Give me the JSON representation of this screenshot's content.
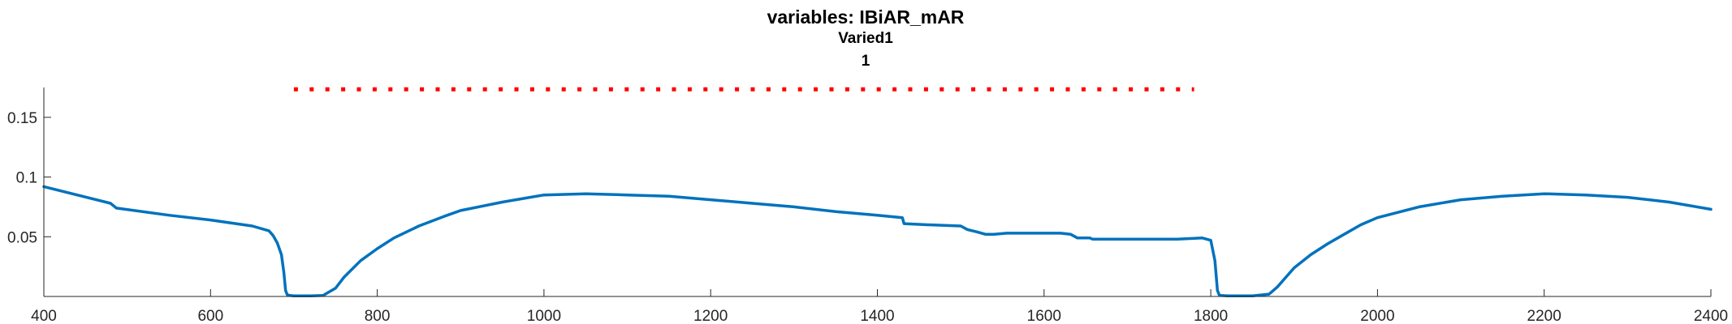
{
  "chart_data": {
    "type": "line",
    "title": "variables: IBiAR_mAR",
    "subtitle": [
      "Varied1",
      "1"
    ],
    "xlabel": "",
    "ylabel": "",
    "xlim": [
      400,
      2400
    ],
    "ylim": [
      0,
      0.175
    ],
    "xticks": [
      400,
      600,
      800,
      1000,
      1200,
      1400,
      1600,
      1800,
      2000,
      2200,
      2400
    ],
    "xtick_labels": [
      "400",
      "600",
      "800",
      "1000",
      "1200",
      "1400",
      "1600",
      "1800",
      "2000",
      "2200",
      "2400"
    ],
    "yticks": [
      0.05,
      0.1,
      0.15
    ],
    "ytick_labels": [
      "0.05",
      "0.1",
      "0.15"
    ],
    "grid": false,
    "series": [
      {
        "color": "#0072bd",
        "style": "solid",
        "x": [
          400,
          480,
          487,
          550,
          600,
          650,
          670,
          675,
          680,
          685,
          688,
          690,
          692,
          695,
          700,
          720,
          735,
          750,
          760,
          780,
          800,
          820,
          850,
          880,
          900,
          950,
          1000,
          1050,
          1100,
          1150,
          1200,
          1250,
          1300,
          1350,
          1400,
          1430,
          1432,
          1460,
          1500,
          1508,
          1520,
          1530,
          1540,
          1555,
          1560,
          1600,
          1620,
          1632,
          1640,
          1655,
          1658,
          1680,
          1720,
          1760,
          1790,
          1800,
          1805,
          1808,
          1810,
          1812,
          1820,
          1850,
          1870,
          1880,
          1890,
          1900,
          1920,
          1940,
          1960,
          1980,
          2000,
          2050,
          2100,
          2150,
          2200,
          2250,
          2300,
          2350,
          2400
        ],
        "y": [
          0.092,
          0.078,
          0.074,
          0.068,
          0.064,
          0.059,
          0.055,
          0.051,
          0.045,
          0.035,
          0.02,
          0.005,
          0.0015,
          0.0008,
          0.0005,
          0.0005,
          0.0008,
          0.007,
          0.016,
          0.03,
          0.04,
          0.049,
          0.059,
          0.067,
          0.072,
          0.079,
          0.085,
          0.086,
          0.085,
          0.084,
          0.081,
          0.078,
          0.075,
          0.071,
          0.068,
          0.066,
          0.061,
          0.06,
          0.059,
          0.056,
          0.054,
          0.052,
          0.052,
          0.053,
          0.053,
          0.053,
          0.053,
          0.052,
          0.049,
          0.049,
          0.048,
          0.048,
          0.048,
          0.048,
          0.049,
          0.047,
          0.03,
          0.005,
          0.0015,
          0.0008,
          0.0005,
          0.0005,
          0.002,
          0.008,
          0.016,
          0.024,
          0.035,
          0.044,
          0.052,
          0.06,
          0.066,
          0.075,
          0.081,
          0.084,
          0.086,
          0.085,
          0.083,
          0.079,
          0.073
        ]
      },
      {
        "color": "#ff0000",
        "style": "dotted",
        "x": [
          700,
          1780
        ],
        "y": [
          0.1735,
          0.1735
        ]
      }
    ]
  }
}
